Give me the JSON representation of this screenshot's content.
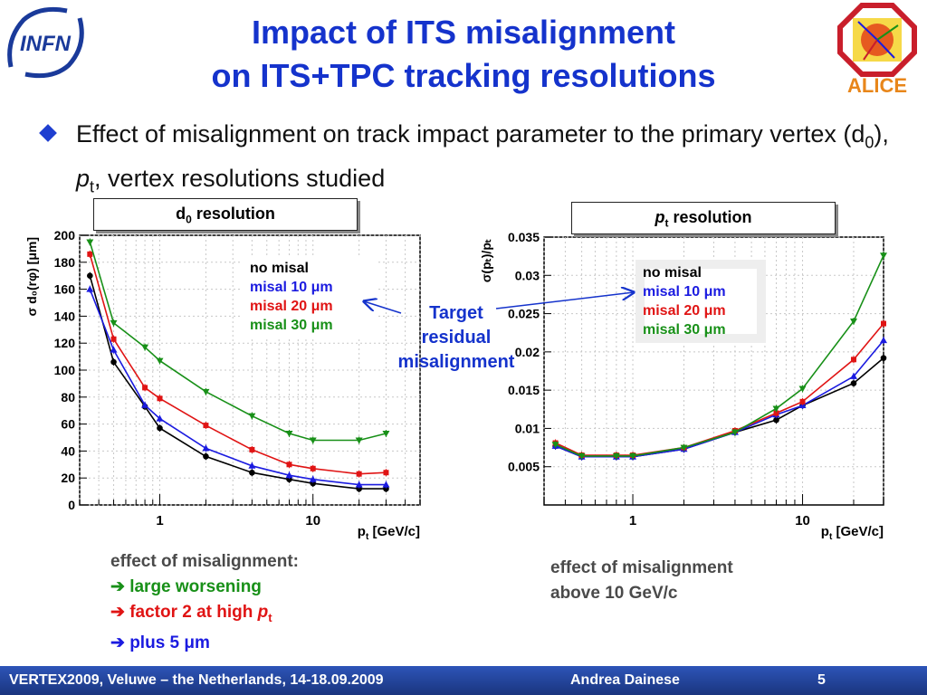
{
  "logos": {
    "infn": "INFN",
    "alice": "ALICE"
  },
  "title": {
    "line1": "Impact of ITS misalignment",
    "line2": "on ITS+TPC tracking resolutions"
  },
  "bullet": {
    "part1": "Effect of misalignment on track impact parameter to the primary vertex (d",
    "sub1": "0",
    "part2": "), ",
    "italic": "p",
    "sub2": "t",
    "part3": ", vertex resolutions studied"
  },
  "left_box": {
    "label": "d",
    "sub": "0",
    "rest": " resolution"
  },
  "right_box": {
    "italic": "p",
    "sub": "t",
    "rest": " resolution"
  },
  "legend": {
    "items": [
      {
        "text": "no misal",
        "color": "#000000"
      },
      {
        "text": "misal 10 μm",
        "color": "#1b1be0"
      },
      {
        "text": "misal 20 μm",
        "color": "#e01414"
      },
      {
        "text": "misal 30 μm",
        "color": "#189018"
      }
    ]
  },
  "target_label": {
    "l1": "Target",
    "l2": "residual",
    "l3": "misalignment"
  },
  "left_note": {
    "l1": "effect of misalignment:",
    "arrow": "➔",
    "l2": "large worsening",
    "l3": "factor 2 at high ",
    "l3_italic": "p",
    "l3_sub": "t",
    "l4": "plus 5 μm",
    "colors": {
      "l2": "#189018",
      "l3": "#e01414",
      "l4": "#1b1be0"
    }
  },
  "right_note": {
    "l1": "effect of misalignment",
    "l2": "above 10 GeV/c"
  },
  "footer": {
    "left": "VERTEX2009, Veluwe – the Netherlands, 14-18.09.2009",
    "center": "Andrea Dainese",
    "page": "5"
  },
  "chart_data": [
    {
      "type": "line",
      "name": "d0 resolution",
      "xscale": "log",
      "xlim": [
        0.3,
        50
      ],
      "ylim": [
        0,
        200
      ],
      "yticks": [
        0,
        20,
        40,
        60,
        80,
        100,
        120,
        140,
        160,
        180,
        200
      ],
      "xticks": [
        1,
        10
      ],
      "xlabel": "p",
      "xlabel_sub": "t",
      "xlabel_rest": " [GeV/c]",
      "ylabel": "σ d₀(rφ) [μm]",
      "x": [
        0.35,
        0.5,
        0.8,
        1.0,
        2.0,
        4.0,
        7.0,
        10.0,
        20.0,
        30.0
      ],
      "series": [
        {
          "name": "no misal",
          "color": "#000000",
          "values": [
            170,
            106,
            73,
            57,
            36,
            24,
            19,
            16,
            12,
            12
          ]
        },
        {
          "name": "misal 10 μm",
          "color": "#1b1be0",
          "values": [
            160,
            115,
            74,
            64,
            42,
            29,
            22,
            19,
            15,
            15
          ]
        },
        {
          "name": "misal 20 μm",
          "color": "#e01414",
          "values": [
            186,
            123,
            87,
            79,
            59,
            41,
            30,
            27,
            23,
            24
          ]
        },
        {
          "name": "misal 30 μm",
          "color": "#189018",
          "values": [
            195,
            135,
            117,
            107,
            84,
            66,
            53,
            48,
            48,
            53
          ]
        }
      ]
    },
    {
      "type": "line",
      "name": "pt resolution",
      "xscale": "log",
      "xlim": [
        0.3,
        30
      ],
      "ylim": [
        0,
        0.035
      ],
      "yticks": [
        0.005,
        0.01,
        0.015,
        0.02,
        0.025,
        0.03,
        0.035
      ],
      "ytick_labels": [
        "0.005",
        "0.01",
        "0.015",
        "0.02",
        "0.025",
        "0.03",
        "0.035"
      ],
      "xticks": [
        1,
        10
      ],
      "xlabel": "p",
      "xlabel_sub": "t",
      "xlabel_rest": " [GeV/c]",
      "ylabel": "σ(pₜ)/pₜ",
      "x": [
        0.35,
        0.5,
        0.8,
        1.0,
        2.0,
        4.0,
        7.0,
        10.0,
        20.0,
        30.0
      ],
      "series": [
        {
          "name": "no misal",
          "color": "#000000",
          "values": [
            0.0077,
            0.0063,
            0.0063,
            0.0063,
            0.0073,
            0.0095,
            0.0111,
            0.013,
            0.0159,
            0.0192
          ]
        },
        {
          "name": "misal 10 μm",
          "color": "#1b1be0",
          "values": [
            0.0077,
            0.0063,
            0.0063,
            0.0063,
            0.0073,
            0.0095,
            0.0118,
            0.013,
            0.0168,
            0.0215
          ]
        },
        {
          "name": "misal 20 μm",
          "color": "#e01414",
          "values": [
            0.0081,
            0.0065,
            0.0065,
            0.0065,
            0.0075,
            0.0097,
            0.012,
            0.0135,
            0.019,
            0.0237
          ]
        },
        {
          "name": "misal 30 μm",
          "color": "#189018",
          "values": [
            0.0079,
            0.0064,
            0.0064,
            0.0064,
            0.0075,
            0.0095,
            0.0126,
            0.0152,
            0.024,
            0.0326
          ]
        }
      ]
    }
  ]
}
